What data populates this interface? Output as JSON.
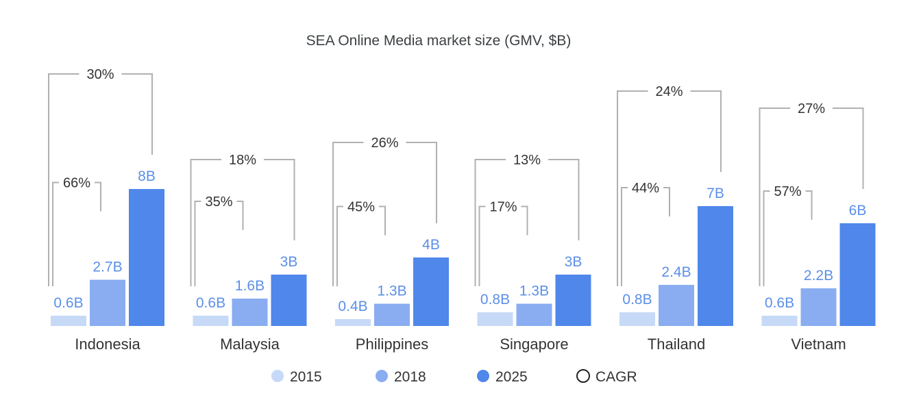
{
  "chart_data": {
    "type": "bar",
    "title": "SEA Online Media market size (GMV, $B)",
    "categories": [
      "Indonesia",
      "Malaysia",
      "Philippines",
      "Singapore",
      "Thailand",
      "Vietnam"
    ],
    "series": [
      {
        "name": "2015",
        "color": "#c6d9f7",
        "values": [
          0.6,
          0.6,
          0.4,
          0.8,
          0.8,
          0.6
        ],
        "labels": [
          "0.6B",
          "0.6B",
          "0.4B",
          "0.8B",
          "0.8B",
          "0.6B"
        ]
      },
      {
        "name": "2018",
        "color": "#89adf0",
        "values": [
          2.7,
          1.6,
          1.3,
          1.3,
          2.4,
          2.2
        ],
        "labels": [
          "2.7B",
          "1.6B",
          "1.3B",
          "1.3B",
          "2.4B",
          "2.2B"
        ]
      },
      {
        "name": "2025",
        "color": "#4f87ea",
        "values": [
          8,
          3,
          4,
          3,
          7,
          6
        ],
        "labels": [
          "8B",
          "3B",
          "4B",
          "3B",
          "7B",
          "6B"
        ]
      }
    ],
    "cagr_2015_2018": [
      "66%",
      "35%",
      "45%",
      "17%",
      "44%",
      "57%"
    ],
    "cagr_2015_2025": [
      "30%",
      "18%",
      "26%",
      "13%",
      "24%",
      "27%"
    ],
    "legend": {
      "items": [
        "2015",
        "2018",
        "2025"
      ],
      "cagr_label": "CAGR",
      "placement": "bottom"
    },
    "label_color": "#5b8fe8",
    "grid": false
  }
}
